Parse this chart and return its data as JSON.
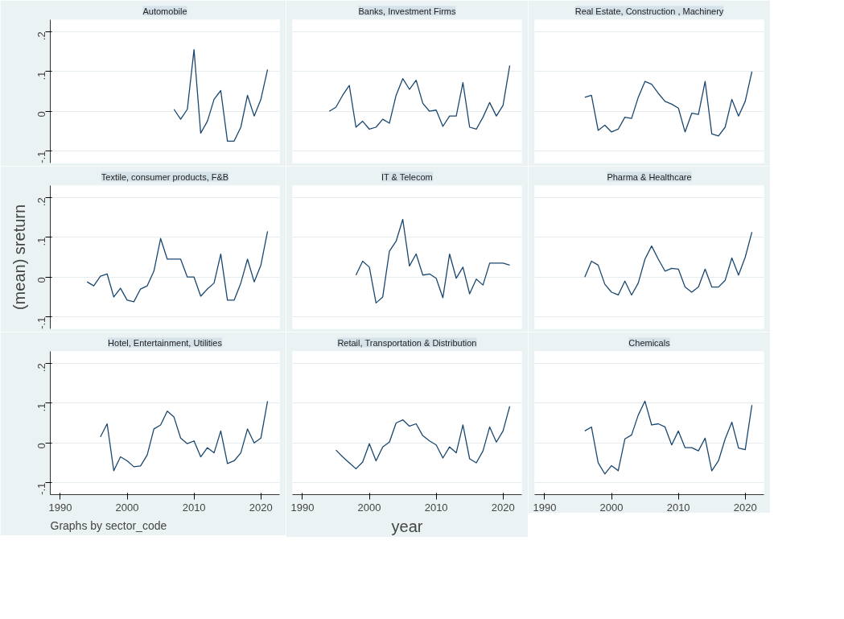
{
  "chart_data": [
    {
      "type": "line",
      "title": "Automobile",
      "x": [
        2007,
        2008,
        2009,
        2010,
        2011,
        2012,
        2013,
        2014,
        2015,
        2016,
        2017,
        2018,
        2019,
        2020,
        2021
      ],
      "series": [
        {
          "color": "#1a476f",
          "values": [
            0.005,
            -0.02,
            0.005,
            0.155,
            -0.055,
            -0.025,
            0.03,
            0.052,
            -0.075,
            -0.075,
            -0.04,
            0.04,
            -0.012,
            0.03,
            0.105
          ]
        }
      ],
      "xlim": [
        1988.5,
        2022.8
      ],
      "ylim": [
        -0.13,
        0.23
      ],
      "yticks": [
        {
          "value": -0.1,
          "label": "-.1"
        },
        {
          "value": 0,
          "label": "0"
        },
        {
          "value": 0.1,
          "label": ".1"
        },
        {
          "value": 0.2,
          "label": ".2"
        }
      ],
      "grid": "y",
      "line_style": "solid",
      "tick_labels": "y"
    },
    {
      "type": "line",
      "title": "Banks, Investment Firms",
      "x": [
        1994,
        1995,
        1996,
        1997,
        1998,
        1999,
        2000,
        2001,
        2002,
        2003,
        2004,
        2005,
        2006,
        2007,
        2008,
        2009,
        2010,
        2011,
        2012,
        2013,
        2014,
        2015,
        2016,
        2017,
        2018,
        2019,
        2020,
        2021
      ],
      "series": [
        {
          "color": "#1a476f",
          "values": [
            0,
            0.01,
            0.04,
            0.065,
            -0.04,
            -0.025,
            -0.045,
            -0.04,
            -0.02,
            -0.03,
            0.04,
            0.082,
            0.055,
            0.078,
            0.02,
            0,
            0.003,
            -0.038,
            -0.012,
            -0.012,
            0.072,
            -0.04,
            -0.045,
            -0.015,
            0.022,
            -0.012,
            0.015,
            0.115
          ]
        }
      ],
      "xlim": [
        1988.5,
        2022.8
      ],
      "ylim": [
        -0.13,
        0.23
      ],
      "yticks": [
        -0.1,
        0,
        0.1,
        0.2
      ],
      "grid": "y",
      "line_style": "solid",
      "tick_labels": false
    },
    {
      "type": "line",
      "title": "Real Estate, Construction , Machinery",
      "x": [
        1996,
        1997,
        1998,
        1999,
        2000,
        2001,
        2002,
        2003,
        2004,
        2005,
        2006,
        2007,
        2008,
        2009,
        2010,
        2011,
        2012,
        2013,
        2014,
        2015,
        2016,
        2017,
        2018,
        2019,
        2020,
        2021
      ],
      "series": [
        {
          "color": "#1a476f",
          "values": [
            0.035,
            0.04,
            -0.048,
            -0.035,
            -0.052,
            -0.045,
            -0.015,
            -0.018,
            0.035,
            0.075,
            0.068,
            0.045,
            0.025,
            0.018,
            0.008,
            -0.052,
            -0.005,
            -0.008,
            0.075,
            -0.057,
            -0.062,
            -0.04,
            0.03,
            -0.012,
            0.025,
            0.1
          ]
        }
      ],
      "xlim": [
        1988.5,
        2022.8
      ],
      "ylim": [
        -0.13,
        0.23
      ],
      "yticks": [
        -0.1,
        0,
        0.1,
        0.2
      ],
      "grid": "y",
      "line_style": "solid",
      "tick_labels": false
    },
    {
      "type": "line",
      "title": "Textile, consumer products, F&B",
      "ylabel": "(mean) sreturn",
      "x": [
        1994,
        1995,
        1996,
        1997,
        1998,
        1999,
        2000,
        2001,
        2002,
        2003,
        2004,
        2005,
        2006,
        2007,
        2008,
        2009,
        2010,
        2011,
        2012,
        2013,
        2014,
        2015,
        2016,
        2017,
        2018,
        2019,
        2020,
        2021
      ],
      "series": [
        {
          "color": "#1a476f",
          "values": [
            -0.012,
            -0.022,
            0.002,
            0.008,
            -0.05,
            -0.028,
            -0.058,
            -0.062,
            -0.03,
            -0.022,
            0.015,
            0.097,
            0.045,
            0.045,
            0.045,
            0,
            0,
            -0.048,
            -0.03,
            -0.015,
            0.058,
            -0.058,
            -0.058,
            -0.015,
            0.045,
            -0.012,
            0.03,
            0.115
          ]
        }
      ],
      "xlim": [
        1988.5,
        2022.8
      ],
      "ylim": [
        -0.13,
        0.23
      ],
      "yticks": [
        {
          "value": -0.1,
          "label": "-.1"
        },
        {
          "value": 0,
          "label": "0"
        },
        {
          "value": 0.1,
          "label": ".1"
        },
        {
          "value": 0.2,
          "label": ".2"
        }
      ],
      "grid": "y",
      "line_style": "solid",
      "tick_labels": "y"
    },
    {
      "type": "line",
      "title": "IT & Telecom",
      "x": [
        1998,
        1999,
        2000,
        2001,
        2002,
        2003,
        2004,
        2005,
        2006,
        2007,
        2008,
        2009,
        2010,
        2011,
        2012,
        2013,
        2014,
        2015,
        2016,
        2017,
        2018,
        2019,
        2020,
        2021
      ],
      "series": [
        {
          "color": "#1a476f",
          "values": [
            0.005,
            0.04,
            0.025,
            -0.065,
            -0.05,
            0.065,
            0.09,
            0.145,
            0.028,
            0.058,
            0.005,
            0.008,
            -0.003,
            -0.052,
            0.058,
            -0.003,
            0.025,
            -0.042,
            -0.005,
            -0.02,
            0.035,
            0.035,
            0.035,
            0.03
          ]
        }
      ],
      "xlim": [
        1988.5,
        2022.8
      ],
      "ylim": [
        -0.13,
        0.23
      ],
      "yticks": [
        -0.1,
        0,
        0.1,
        0.2
      ],
      "grid": "y",
      "line_style": "solid",
      "tick_labels": false
    },
    {
      "type": "line",
      "title": "Pharma & Healthcare",
      "x": [
        1996,
        1997,
        1998,
        1999,
        2000,
        2001,
        2002,
        2003,
        2004,
        2005,
        2006,
        2007,
        2008,
        2009,
        2010,
        2011,
        2012,
        2013,
        2014,
        2015,
        2016,
        2017,
        2018,
        2019,
        2020,
        2021
      ],
      "series": [
        {
          "color": "#1a476f",
          "values": [
            0,
            0.04,
            0.03,
            -0.018,
            -0.038,
            -0.045,
            -0.01,
            -0.045,
            -0.015,
            0.045,
            0.078,
            0.045,
            0.015,
            0.022,
            0.02,
            -0.025,
            -0.038,
            -0.025,
            0.02,
            -0.025,
            -0.025,
            -0.008,
            0.048,
            0.005,
            0.05,
            0.113
          ]
        }
      ],
      "xlim": [
        1988.5,
        2022.8
      ],
      "ylim": [
        -0.13,
        0.23
      ],
      "yticks": [
        -0.1,
        0,
        0.1,
        0.2
      ],
      "grid": "y",
      "line_style": "solid",
      "tick_labels": false
    },
    {
      "type": "line",
      "title": "Hotel, Entertainment, Utilities",
      "annotations": [
        "Graphs by sector_code"
      ],
      "x": [
        1996,
        1997,
        1998,
        1999,
        2000,
        2001,
        2002,
        2003,
        2004,
        2005,
        2006,
        2007,
        2008,
        2009,
        2010,
        2011,
        2012,
        2013,
        2014,
        2015,
        2016,
        2017,
        2018,
        2019,
        2020,
        2021
      ],
      "series": [
        {
          "color": "#1a476f",
          "values": [
            0.015,
            0.048,
            -0.07,
            -0.035,
            -0.045,
            -0.06,
            -0.058,
            -0.03,
            0.035,
            0.045,
            0.08,
            0.065,
            0.012,
            -0.002,
            0.005,
            -0.035,
            -0.012,
            -0.025,
            0.03,
            -0.052,
            -0.045,
            -0.025,
            0.035,
            0,
            0.012,
            0.105
          ]
        }
      ],
      "xlim": [
        1988.5,
        2022.8
      ],
      "ylim": [
        -0.13,
        0.23
      ],
      "xticks": [
        1990,
        2000,
        2010,
        2020
      ],
      "yticks": [
        {
          "value": -0.1,
          "label": "-.1"
        },
        {
          "value": 0,
          "label": "0"
        },
        {
          "value": 0.1,
          "label": ".1"
        },
        {
          "value": 0.2,
          "label": ".2"
        }
      ],
      "grid": "y",
      "line_style": "solid"
    },
    {
      "type": "line",
      "title": "Retail, Transportation & Distribution",
      "xlabel": "year",
      "x": [
        1995,
        1996,
        1997,
        1998,
        1999,
        2000,
        2001,
        2002,
        2003,
        2004,
        2005,
        2006,
        2007,
        2008,
        2009,
        2010,
        2011,
        2012,
        2013,
        2014,
        2015,
        2016,
        2017,
        2018,
        2019,
        2020,
        2021
      ],
      "series": [
        {
          "color": "#1a476f",
          "values": [
            -0.018,
            -0.035,
            -0.05,
            -0.065,
            -0.048,
            -0.002,
            -0.045,
            -0.01,
            0.002,
            0.05,
            0.058,
            0.042,
            0.048,
            0.018,
            0.005,
            -0.005,
            -0.038,
            -0.01,
            -0.025,
            0.045,
            -0.04,
            -0.05,
            -0.02,
            0.04,
            0.002,
            0.03,
            0.092
          ]
        }
      ],
      "xlim": [
        1988.5,
        2022.8
      ],
      "ylim": [
        -0.13,
        0.23
      ],
      "xticks": [
        1990,
        2000,
        2010,
        2020
      ],
      "yticks": [
        -0.1,
        0,
        0.1,
        0.2
      ],
      "grid": "y",
      "line_style": "solid",
      "tick_labels": "x"
    },
    {
      "type": "line",
      "title": "Chemicals",
      "x": [
        1996,
        1997,
        1998,
        1999,
        2000,
        2001,
        2002,
        2003,
        2004,
        2005,
        2006,
        2007,
        2008,
        2009,
        2010,
        2011,
        2012,
        2013,
        2014,
        2015,
        2016,
        2017,
        2018,
        2019,
        2020,
        2021
      ],
      "series": [
        {
          "color": "#1a476f",
          "values": [
            0.03,
            0.04,
            -0.05,
            -0.078,
            -0.057,
            -0.07,
            0.01,
            0.02,
            0.07,
            0.105,
            0.045,
            0.048,
            0.04,
            -0.005,
            0.03,
            -0.012,
            -0.012,
            -0.02,
            0.012,
            -0.07,
            -0.045,
            0.01,
            0.052,
            -0.013,
            -0.017,
            0.095
          ]
        }
      ],
      "xlim": [
        1988.5,
        2022.8
      ],
      "ylim": [
        -0.13,
        0.23
      ],
      "xticks": [
        1990,
        2000,
        2010,
        2020
      ],
      "yticks": [
        -0.1,
        0,
        0.1,
        0.2
      ],
      "grid": "y",
      "line_style": "solid",
      "tick_labels": "x"
    }
  ]
}
